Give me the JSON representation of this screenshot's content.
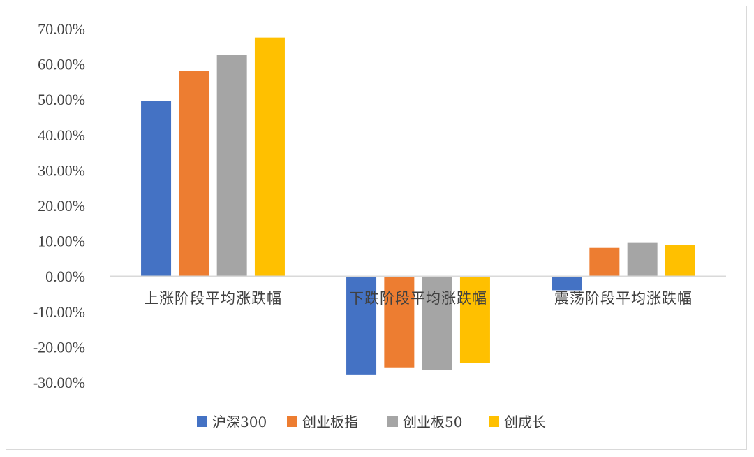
{
  "chart_data": {
    "type": "bar",
    "categories": [
      "上涨阶段平均涨跌幅",
      "下跌阶段平均涨跌幅",
      "震荡阶段平均涨跌幅"
    ],
    "series": [
      {
        "name": "沪深300",
        "color": "#4472C4",
        "values": [
          49.6,
          -27.8,
          -4.0
        ]
      },
      {
        "name": "创业板指",
        "color": "#ED7D31",
        "values": [
          58.0,
          -25.8,
          8.0
        ]
      },
      {
        "name": "创业板50",
        "color": "#A5A5A5",
        "values": [
          62.5,
          -26.5,
          9.4
        ]
      },
      {
        "name": "创成长",
        "color": "#FFC000",
        "values": [
          67.5,
          -24.5,
          8.8
        ]
      }
    ],
    "ylim": [
      -30,
      70
    ],
    "yticks": [
      70,
      60,
      50,
      40,
      30,
      20,
      10,
      0,
      -10,
      -20,
      -30
    ],
    "ytick_labels": [
      "70.00%",
      "60.00%",
      "50.00%",
      "40.00%",
      "30.00%",
      "20.00%",
      "10.00%",
      "0.00%",
      "-10.00%",
      "-20.00%",
      "-30.00%"
    ],
    "grid": false,
    "legend_position": "bottom",
    "title": "",
    "xlabel": "",
    "ylabel": ""
  }
}
